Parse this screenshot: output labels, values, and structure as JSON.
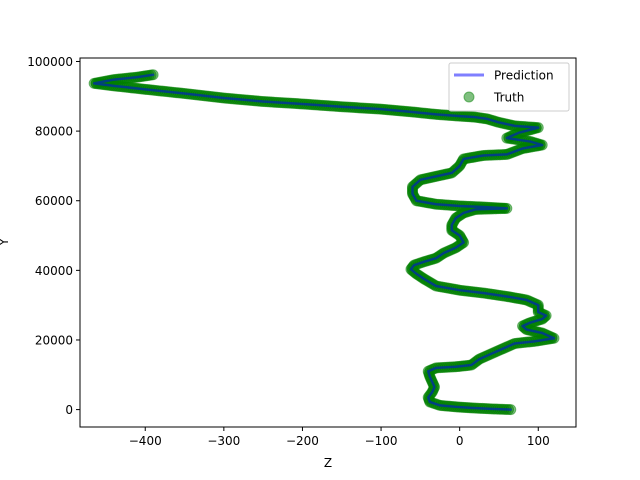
{
  "chart_data": {
    "type": "line",
    "title": "",
    "xlabel": "Z",
    "ylabel": "Y",
    "xlim": [
      -483,
      148
    ],
    "ylim": [
      -5000,
      101000
    ],
    "xticks": [
      -400,
      -300,
      -200,
      -100,
      0,
      100
    ],
    "yticks": [
      0,
      20000,
      40000,
      60000,
      80000,
      100000
    ],
    "grid": false,
    "legend_position": "top-right",
    "series": [
      {
        "name": "Prediction",
        "kind": "line",
        "color": "#0000ff",
        "opacity": 0.5,
        "points": [
          [
            65,
            0
          ],
          [
            40,
            200
          ],
          [
            15,
            500
          ],
          [
            -5,
            800
          ],
          [
            -25,
            1200
          ],
          [
            -38,
            2200
          ],
          [
            -40,
            3500
          ],
          [
            -35,
            5000
          ],
          [
            -32,
            6500
          ],
          [
            -35,
            8000
          ],
          [
            -38,
            9500
          ],
          [
            -40,
            11000
          ],
          [
            -30,
            12000
          ],
          [
            -5,
            12300
          ],
          [
            15,
            12800
          ],
          [
            25,
            14500
          ],
          [
            40,
            16000
          ],
          [
            55,
            17500
          ],
          [
            70,
            19000
          ],
          [
            95,
            19600
          ],
          [
            120,
            20500
          ],
          [
            105,
            22000
          ],
          [
            85,
            23000
          ],
          [
            80,
            24000
          ],
          [
            90,
            25000
          ],
          [
            105,
            26000
          ],
          [
            110,
            27000
          ],
          [
            100,
            28000
          ],
          [
            100,
            30000
          ],
          [
            85,
            31500
          ],
          [
            60,
            32500
          ],
          [
            30,
            33500
          ],
          [
            0,
            34300
          ],
          [
            -30,
            35500
          ],
          [
            -45,
            37500
          ],
          [
            -55,
            39000
          ],
          [
            -62,
            40300
          ],
          [
            -58,
            41500
          ],
          [
            -45,
            42500
          ],
          [
            -30,
            43500
          ],
          [
            -20,
            45000
          ],
          [
            -5,
            46500
          ],
          [
            5,
            48000
          ],
          [
            0,
            50000
          ],
          [
            -10,
            51500
          ],
          [
            -10,
            53000
          ],
          [
            -5,
            55000
          ],
          [
            5,
            56500
          ],
          [
            20,
            57500
          ],
          [
            60,
            57800
          ],
          [
            30,
            58200
          ],
          [
            0,
            58500
          ],
          [
            -30,
            59000
          ],
          [
            -55,
            60000
          ],
          [
            -60,
            62000
          ],
          [
            -60,
            64000
          ],
          [
            -50,
            66000
          ],
          [
            -30,
            67000
          ],
          [
            -10,
            68000
          ],
          [
            0,
            70000
          ],
          [
            5,
            72000
          ],
          [
            30,
            73000
          ],
          [
            60,
            73300
          ],
          [
            80,
            75000
          ],
          [
            105,
            76000
          ],
          [
            90,
            77000
          ],
          [
            60,
            78000
          ],
          [
            75,
            79500
          ],
          [
            100,
            81000
          ],
          [
            70,
            81500
          ],
          [
            50,
            82500
          ],
          [
            35,
            83500
          ],
          [
            20,
            84000
          ],
          [
            0,
            84300
          ],
          [
            -30,
            84800
          ],
          [
            -60,
            85500
          ],
          [
            -100,
            86300
          ],
          [
            -150,
            87000
          ],
          [
            -200,
            87800
          ],
          [
            -250,
            88500
          ],
          [
            -300,
            89500
          ],
          [
            -350,
            90800
          ],
          [
            -400,
            92000
          ],
          [
            -440,
            93000
          ],
          [
            -465,
            93700
          ],
          [
            -440,
            94800
          ],
          [
            -410,
            95500
          ],
          [
            -390,
            96200
          ]
        ]
      },
      {
        "name": "Truth",
        "kind": "scatter",
        "color": "#008000",
        "opacity": 0.5
      }
    ]
  }
}
